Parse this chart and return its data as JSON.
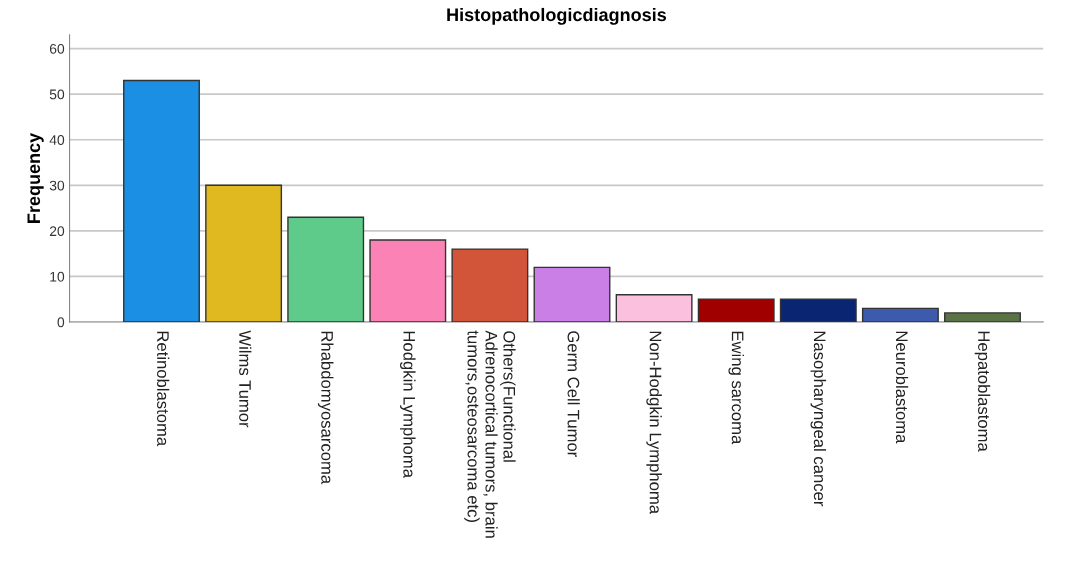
{
  "chart_data": {
    "type": "bar",
    "title": "Histopathologicdiagnosis",
    "ylabel": "Frequency",
    "categories": [
      "Retinoblastoma",
      "Wilms Tumor",
      "Rhabdomyosarcoma",
      "Hodgkin Lymphoma",
      "Others(Functional\nAdrenocortical tumors, brain\ntumors,osteosarcoma etc)",
      "Germ Cell Tumor",
      "Non-Hodgkin Lymphoma",
      "Ewing sarcoma",
      "Nasopharyngeal cancer",
      "Neuroblastoma",
      "Hepatoblastoma"
    ],
    "values": [
      53,
      30,
      23,
      18,
      16,
      12,
      6,
      5,
      5,
      3,
      2
    ],
    "colors": [
      "#1a8fe3",
      "#e0b820",
      "#5ecb8a",
      "#fb82b4",
      "#d2553a",
      "#c97fe6",
      "#fcc0df",
      "#a00000",
      "#0a2673",
      "#3e5aac",
      "#5a7345"
    ],
    "ylim": [
      0,
      63
    ],
    "yticks": [
      0,
      10,
      20,
      30,
      40,
      50,
      60
    ],
    "grid": "y",
    "legend": false
  }
}
